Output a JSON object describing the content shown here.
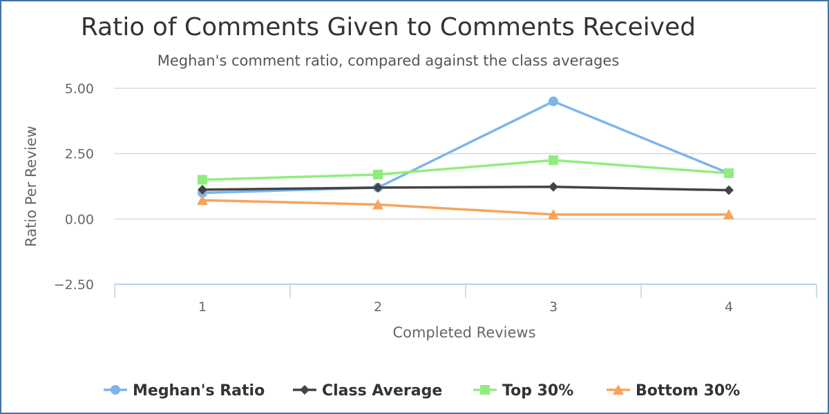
{
  "chart_data": {
    "type": "line",
    "title": "Ratio of Comments Given to Comments Received",
    "subtitle": "Meghan's comment ratio, compared against the class averages",
    "xlabel": "Completed Reviews",
    "ylabel": "Ratio Per Review",
    "categories": [
      "1",
      "2",
      "3",
      "4"
    ],
    "yticks": [
      "5.00",
      "2.50",
      "0.00",
      "−2.50"
    ],
    "ylim": [
      -2.5,
      5
    ],
    "grid": "horizontal",
    "legend_position": "bottom",
    "series": [
      {
        "name": "Meghan's Ratio",
        "values": [
          1.0,
          1.2,
          4.5,
          1.75
        ],
        "color": "#7CB5EC",
        "marker": "circle"
      },
      {
        "name": "Class Average",
        "values": [
          1.12,
          1.2,
          1.23,
          1.1
        ],
        "color": "#434348",
        "marker": "diamond"
      },
      {
        "name": "Top 30%",
        "values": [
          1.5,
          1.7,
          2.25,
          1.75
        ],
        "color": "#90ED7D",
        "marker": "square"
      },
      {
        "name": "Bottom 30%",
        "values": [
          0.72,
          0.55,
          0.17,
          0.17
        ],
        "color": "#F7A35C",
        "marker": "triangle"
      }
    ]
  }
}
